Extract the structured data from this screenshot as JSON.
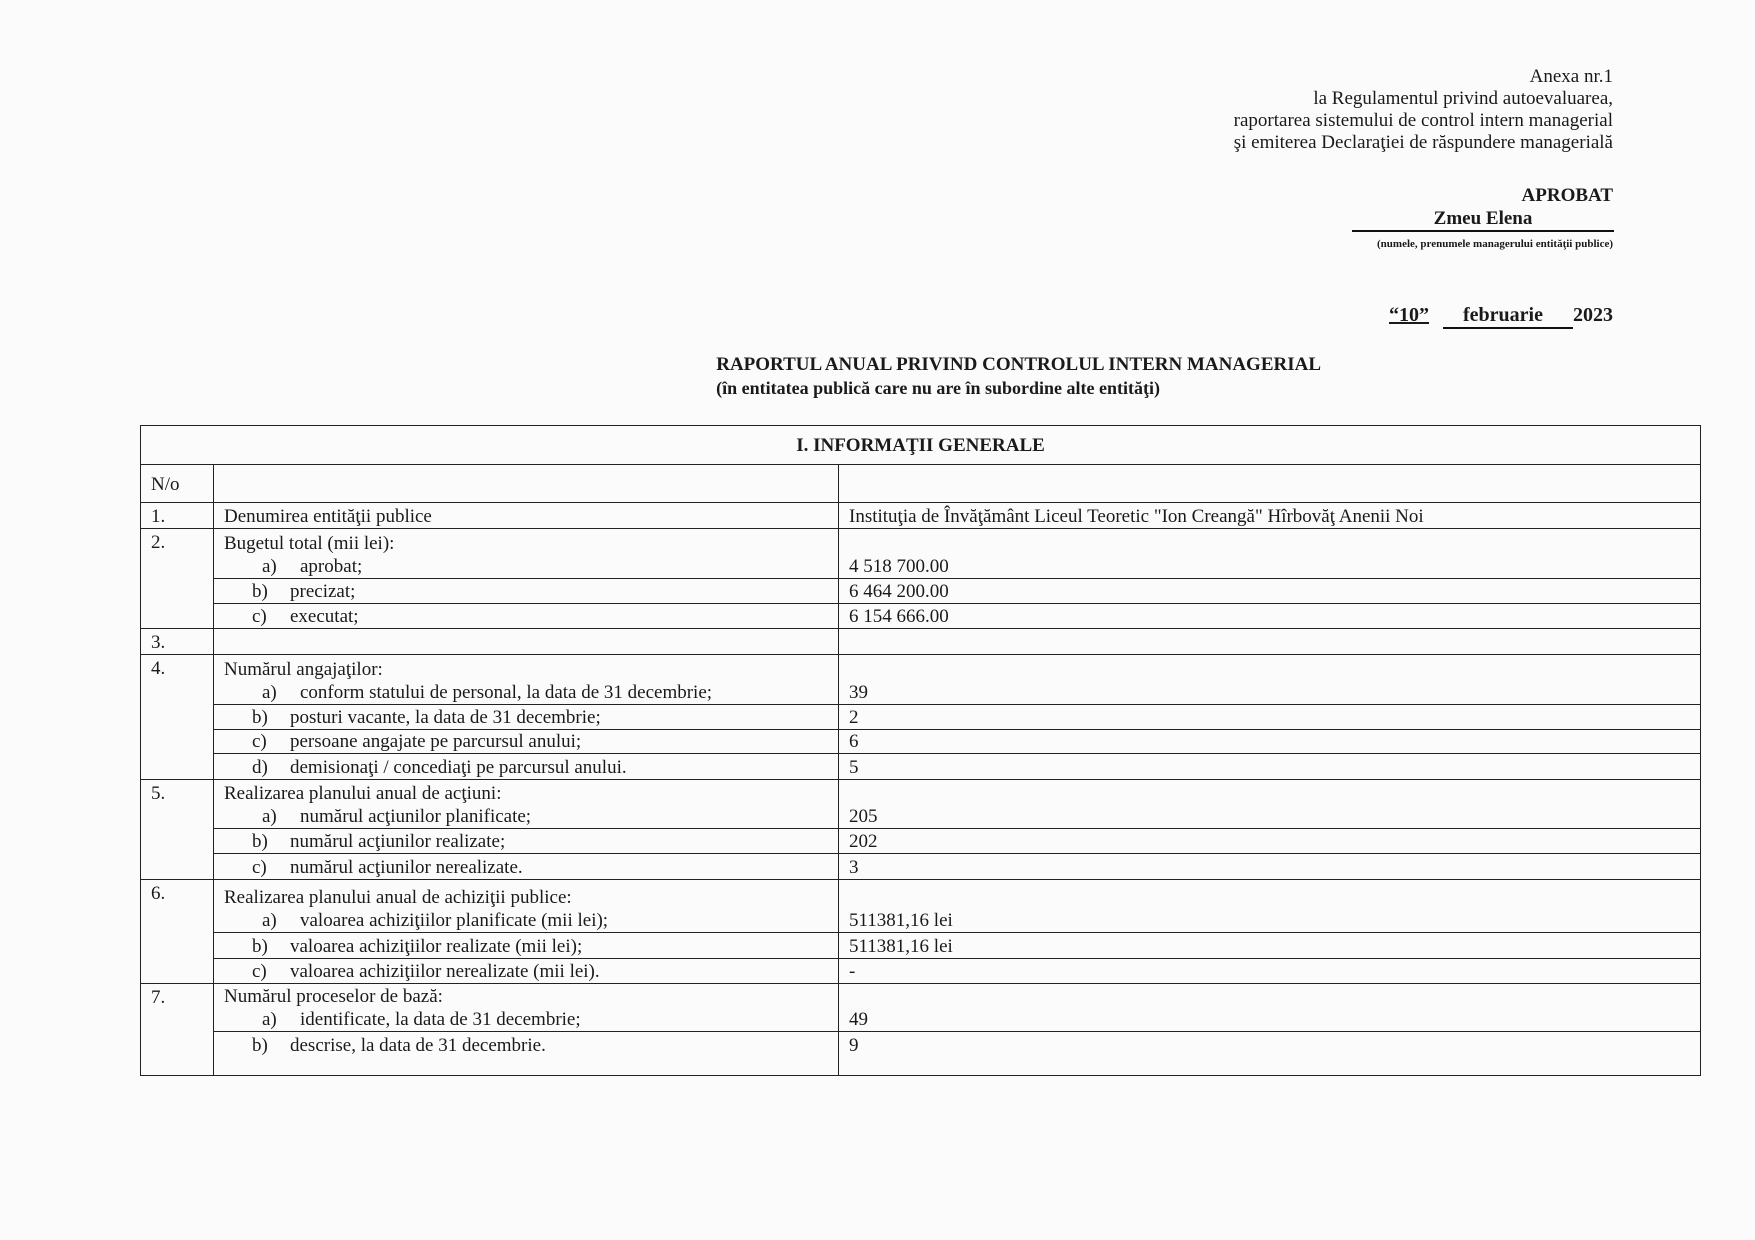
{
  "header": {
    "lines": [
      "Anexa nr.1",
      "la Regulamentul privind autoevaluarea,",
      "raportarea sistemului de control intern managerial",
      "şi emiterea Declaraţiei de răspundere managerială"
    ]
  },
  "approval": {
    "label": "APROBAT",
    "manager": "Zmeu Elena",
    "note": "(numele, prenumele managerului entităţii publice)",
    "day": "“10”",
    "month": "februarie",
    "year": "2023"
  },
  "title": "RAPORTUL ANUAL PRIVIND CONTROLUL INTERN MANAGERIAL",
  "subtitle": "(în entitatea publică care nu are în subordine alte entităţi)",
  "table": {
    "section": "I. INFORMAŢII GENERALE",
    "col_no": "N/o",
    "r1": {
      "no": "1.",
      "label": "Denumirea entităţii publice",
      "value": "Instituţia de Învăţământ  Liceul Teoretic \"Ion Creangă\" Hîrbovăţ Anenii Noi"
    },
    "r2": {
      "no": "2.",
      "label": "Bugetul total (mii lei):",
      "items": [
        {
          "l": "a)",
          "t": "aprobat;",
          "v": "4 518 700.00"
        },
        {
          "l": "b)",
          "t": "precizat;",
          "v": "6 464 200.00"
        },
        {
          "l": "c)",
          "t": "executat;",
          "v": "6 154 666.00"
        }
      ]
    },
    "r3": {
      "no": "3."
    },
    "r4": {
      "no": "4.",
      "label": "Numărul angajaţilor:",
      "items": [
        {
          "l": "a)",
          "t": "conform statului de personal, la data de 31 decembrie;",
          "v": "39"
        },
        {
          "l": "b)",
          "t": "posturi vacante, la data de 31 decembrie;",
          "v": "2"
        },
        {
          "l": "c)",
          "t": "persoane angajate pe parcursul anului;",
          "v": "6"
        },
        {
          "l": "d)",
          "t": "demisionaţi / concediaţi  pe parcursul anului.",
          "v": "5"
        }
      ]
    },
    "r5": {
      "no": "5.",
      "label": "Realizarea planului anual de acţiuni:",
      "items": [
        {
          "l": "a)",
          "t": "numărul acţiunilor planificate;",
          "v": "205"
        },
        {
          "l": "b)",
          "t": "numărul acţiunilor realizate;",
          "v": "202"
        },
        {
          "l": "c)",
          "t": "numărul acţiunilor nerealizate.",
          "v": "3"
        }
      ]
    },
    "r6": {
      "no": "6.",
      "label": "Realizarea planului anual de achiziţii publice:",
      "items": [
        {
          "l": "a)",
          "t": "valoarea achiziţiilor planificate (mii lei);",
          "v": "511381,16 lei"
        },
        {
          "l": "b)",
          "t": "valoarea achiziţiilor realizate (mii lei);",
          "v": "511381,16 lei"
        },
        {
          "l": "c)",
          "t": "valoarea achiziţiilor nerealizate (mii lei).",
          "v": "-"
        }
      ]
    },
    "r7": {
      "no": "7.",
      "label": "Numărul proceselor de bază:",
      "items": [
        {
          "l": "a)",
          "t": "identificate, la data de 31 decembrie;",
          "v": "49"
        },
        {
          "l": "b)",
          "t": "descrise, la data de 31 decembrie.",
          "v": "9"
        }
      ]
    }
  }
}
